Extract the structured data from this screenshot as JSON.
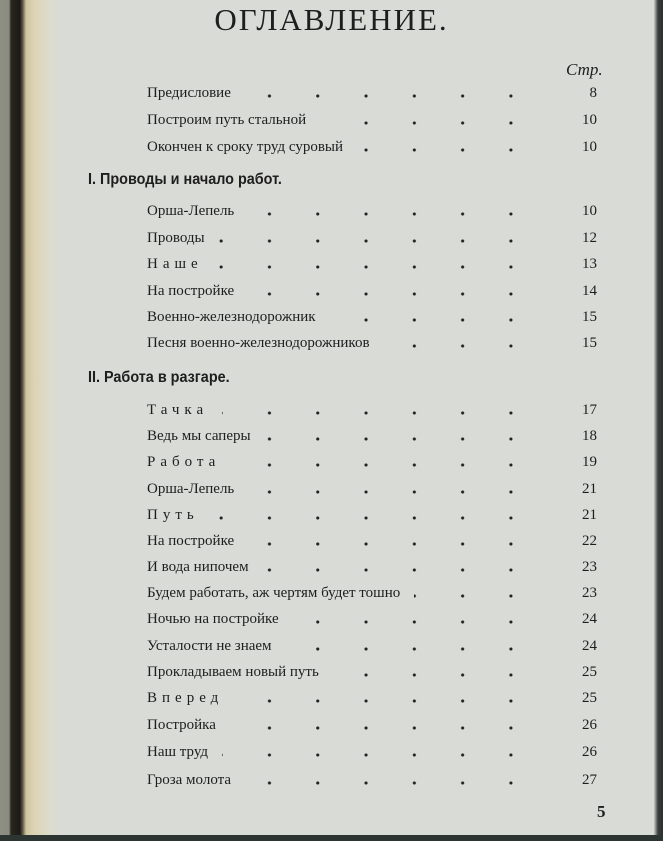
{
  "title": "ОГЛАВЛЕНИЕ.",
  "page_col_label": "Стр.",
  "intro": [
    {
      "title": "Предисловие",
      "page": "8"
    },
    {
      "title": "Построим путь стальной",
      "page": "10"
    },
    {
      "title": "Окончен к сроку труд суровый",
      "page": "10"
    }
  ],
  "sections": [
    {
      "heading": "I. Проводы и начало работ.",
      "items": [
        {
          "title": "Орша-Лепель",
          "page": "10"
        },
        {
          "title": "Проводы",
          "page": "12"
        },
        {
          "title": "Наше",
          "page": "13",
          "spaced": true
        },
        {
          "title": "На постройке",
          "page": "14"
        },
        {
          "title": "Военно-железнодорожник",
          "page": "15"
        },
        {
          "title": "Песня военно-железнодорожников",
          "page": "15"
        }
      ]
    },
    {
      "heading": "II. Работа в разгаре.",
      "items": [
        {
          "title": "Тачка",
          "page": "17",
          "spaced": true
        },
        {
          "title": "Ведь мы саперы",
          "page": "18"
        },
        {
          "title": "Работа",
          "page": "19",
          "spaced": true
        },
        {
          "title": "Орша-Лепель",
          "page": "21"
        },
        {
          "title": "Путь",
          "page": "21",
          "spaced": true
        },
        {
          "title": "На постройке",
          "page": "22"
        },
        {
          "title": "И вода нипочем",
          "page": "23"
        },
        {
          "title": "Будем работать, аж чертям будет тошно",
          "page": "23"
        },
        {
          "title": "Ночью на постройке",
          "page": "24"
        },
        {
          "title": "Усталости не знаем",
          "page": "24"
        },
        {
          "title": "Прокладываем новый путь",
          "page": "25"
        },
        {
          "title": "Вперед",
          "page": "25",
          "spaced": true
        },
        {
          "title": "Постройка",
          "page": "26"
        },
        {
          "title": "Наш труд",
          "page": "26"
        },
        {
          "title": "Гроза молота",
          "page": "27"
        }
      ]
    }
  ],
  "folio": "5"
}
